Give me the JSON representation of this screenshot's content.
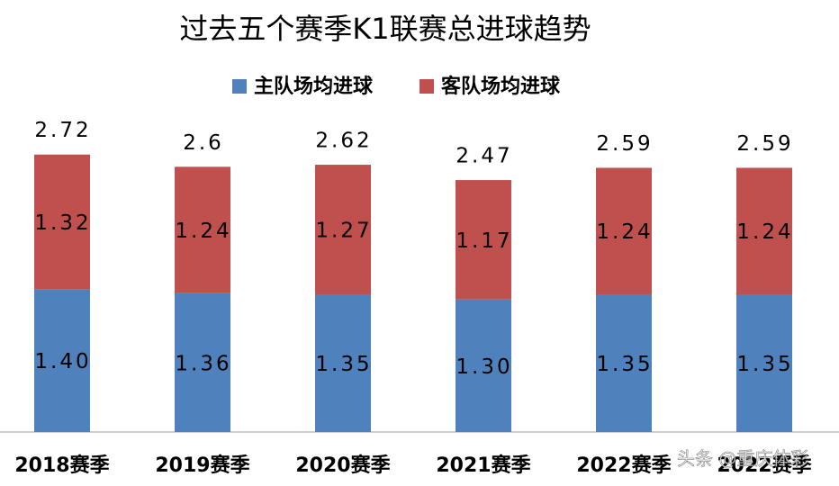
{
  "chart_data": {
    "type": "stacked_bar",
    "title": "过去五个赛季K1联赛总进球趋势",
    "categories": [
      "2018赛季",
      "2019赛季",
      "2020赛季",
      "2021赛季",
      "2022赛季",
      "2022赛季"
    ],
    "series": [
      {
        "name": "主队场均进球",
        "color": "#4f81bd",
        "values": [
          1.4,
          1.36,
          1.35,
          1.3,
          1.35,
          1.35
        ],
        "value_labels": [
          "1.40",
          "1.36",
          "1.35",
          "1.30",
          "1.35",
          "1.35"
        ]
      },
      {
        "name": "客队场均进球",
        "color": "#c0504d",
        "values": [
          1.32,
          1.24,
          1.27,
          1.17,
          1.24,
          1.24
        ],
        "value_labels": [
          "1.32",
          "1.24",
          "1.27",
          "1.17",
          "1.24",
          "1.24"
        ]
      }
    ],
    "totals": [
      2.72,
      2.6,
      2.62,
      2.47,
      2.59,
      2.59
    ],
    "ylim": [
      0,
      3
    ],
    "watermark": "头条 @重庆体彩"
  }
}
